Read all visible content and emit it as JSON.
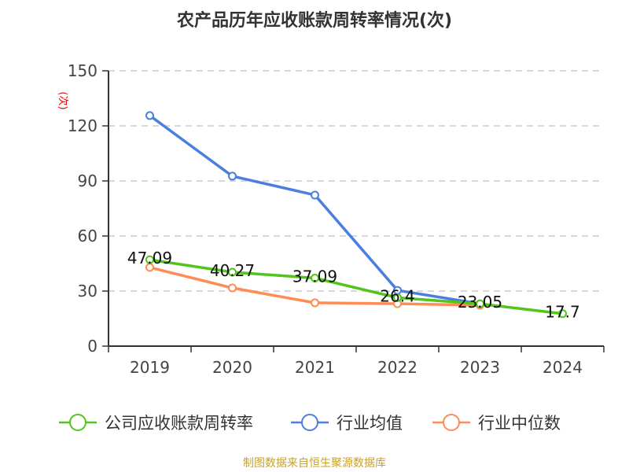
{
  "chart_data": {
    "type": "line",
    "title": "农产品历年应收账款周转率情况(次)",
    "ylabel": "(次)",
    "xlabel": "",
    "categories": [
      "2019",
      "2020",
      "2021",
      "2022",
      "2023",
      "2024"
    ],
    "ylim": [
      0,
      150
    ],
    "yticks": [
      0,
      30,
      60,
      90,
      120,
      150
    ],
    "grid": true,
    "legend": "bottom",
    "series": [
      {
        "name": "公司应收账款周转率",
        "color": "#52c41a",
        "values": [
          47.09,
          40.27,
          37.09,
          26.4,
          23.05,
          17.7
        ],
        "labels": [
          "47.09",
          "40.27",
          "37.09",
          "26.4",
          "23.05",
          "17.7"
        ]
      },
      {
        "name": "行业均值",
        "color": "#4a7fe0",
        "values": [
          125.6,
          92.6,
          82.3,
          30.4,
          23.1,
          null
        ]
      },
      {
        "name": "行业中位数",
        "color": "#ff8c55",
        "values": [
          42.9,
          31.7,
          23.6,
          23.1,
          22.3,
          null
        ]
      }
    ]
  },
  "source": "制图数据来自恒生聚源数据库"
}
